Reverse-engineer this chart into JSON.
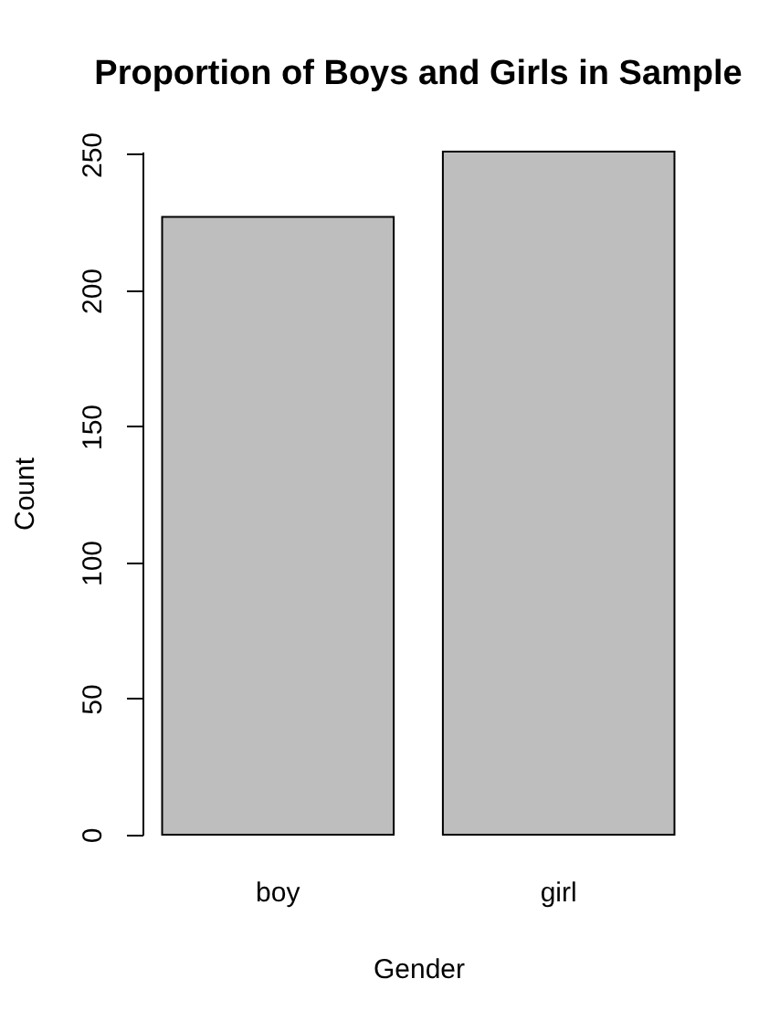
{
  "chart_data": {
    "type": "bar",
    "title": "Proportion of Boys and Girls in Sample",
    "xlabel": "Gender",
    "ylabel": "Count",
    "categories": [
      "boy",
      "girl"
    ],
    "values": [
      227,
      251
    ],
    "color": "#bebebe",
    "ylim": [
      0,
      251
    ],
    "yticks": [
      0,
      50,
      100,
      150,
      200,
      250
    ]
  }
}
